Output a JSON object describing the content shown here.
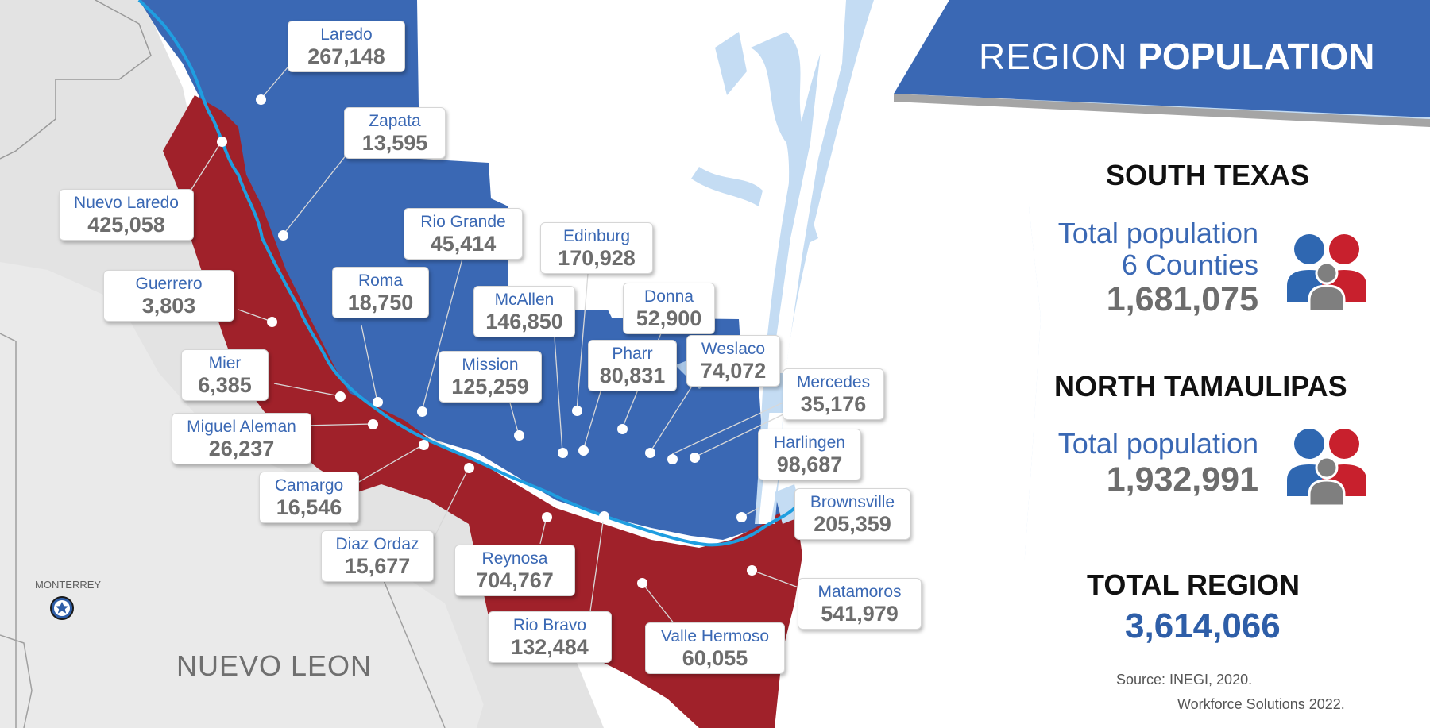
{
  "header": {
    "title_light": "REGION",
    "title_bold": "POPULATION"
  },
  "south_texas": {
    "heading": "SOUTH TEXAS",
    "label_line1": "Total population",
    "label_line2": "6 Counties",
    "value": "1,681,075"
  },
  "north_tamaulipas": {
    "heading": "NORTH TAMAULIPAS",
    "label_line1": "Total population",
    "value": "1,932,991"
  },
  "total_region": {
    "heading": "TOTAL REGION",
    "value": "3,614,066"
  },
  "source": {
    "line1": "Source: INEGI, 2020.",
    "line2": "Workforce Solutions 2022."
  },
  "map": {
    "state_label": "NUEVO LEON",
    "capital": "MONTERREY",
    "colors": {
      "texas_region": "#3a68b4",
      "tamaulipas_region": "#a0212a",
      "water": "#c4dcf3",
      "river": "#1f9ee0",
      "land": "#e6e6e6"
    }
  },
  "cities": [
    {
      "name": "Laredo",
      "population": "267,148"
    },
    {
      "name": "Zapata",
      "population": "13,595"
    },
    {
      "name": "Nuevo Laredo",
      "population": "425,058"
    },
    {
      "name": "Rio Grande",
      "population": "45,414"
    },
    {
      "name": "Edinburg",
      "population": "170,928"
    },
    {
      "name": "Guerrero",
      "population": "3,803"
    },
    {
      "name": "Roma",
      "population": "18,750"
    },
    {
      "name": "McAllen",
      "population": "146,850"
    },
    {
      "name": "Donna",
      "population": "52,900"
    },
    {
      "name": "Mier",
      "population": "6,385"
    },
    {
      "name": "Mission",
      "population": "125,259"
    },
    {
      "name": "Pharr",
      "population": "80,831"
    },
    {
      "name": "Weslaco",
      "population": "74,072"
    },
    {
      "name": "Mercedes",
      "population": "35,176"
    },
    {
      "name": "Miguel Aleman",
      "population": "26,237"
    },
    {
      "name": "Harlingen",
      "population": "98,687"
    },
    {
      "name": "Camargo",
      "population": "16,546"
    },
    {
      "name": "Brownsville",
      "population": "205,359"
    },
    {
      "name": "Diaz Ordaz",
      "population": "15,677"
    },
    {
      "name": "Reynosa",
      "population": "704,767"
    },
    {
      "name": "Matamoros",
      "population": "541,979"
    },
    {
      "name": "Rio Bravo",
      "population": "132,484"
    },
    {
      "name": "Valle Hermoso",
      "population": "60,055"
    }
  ]
}
